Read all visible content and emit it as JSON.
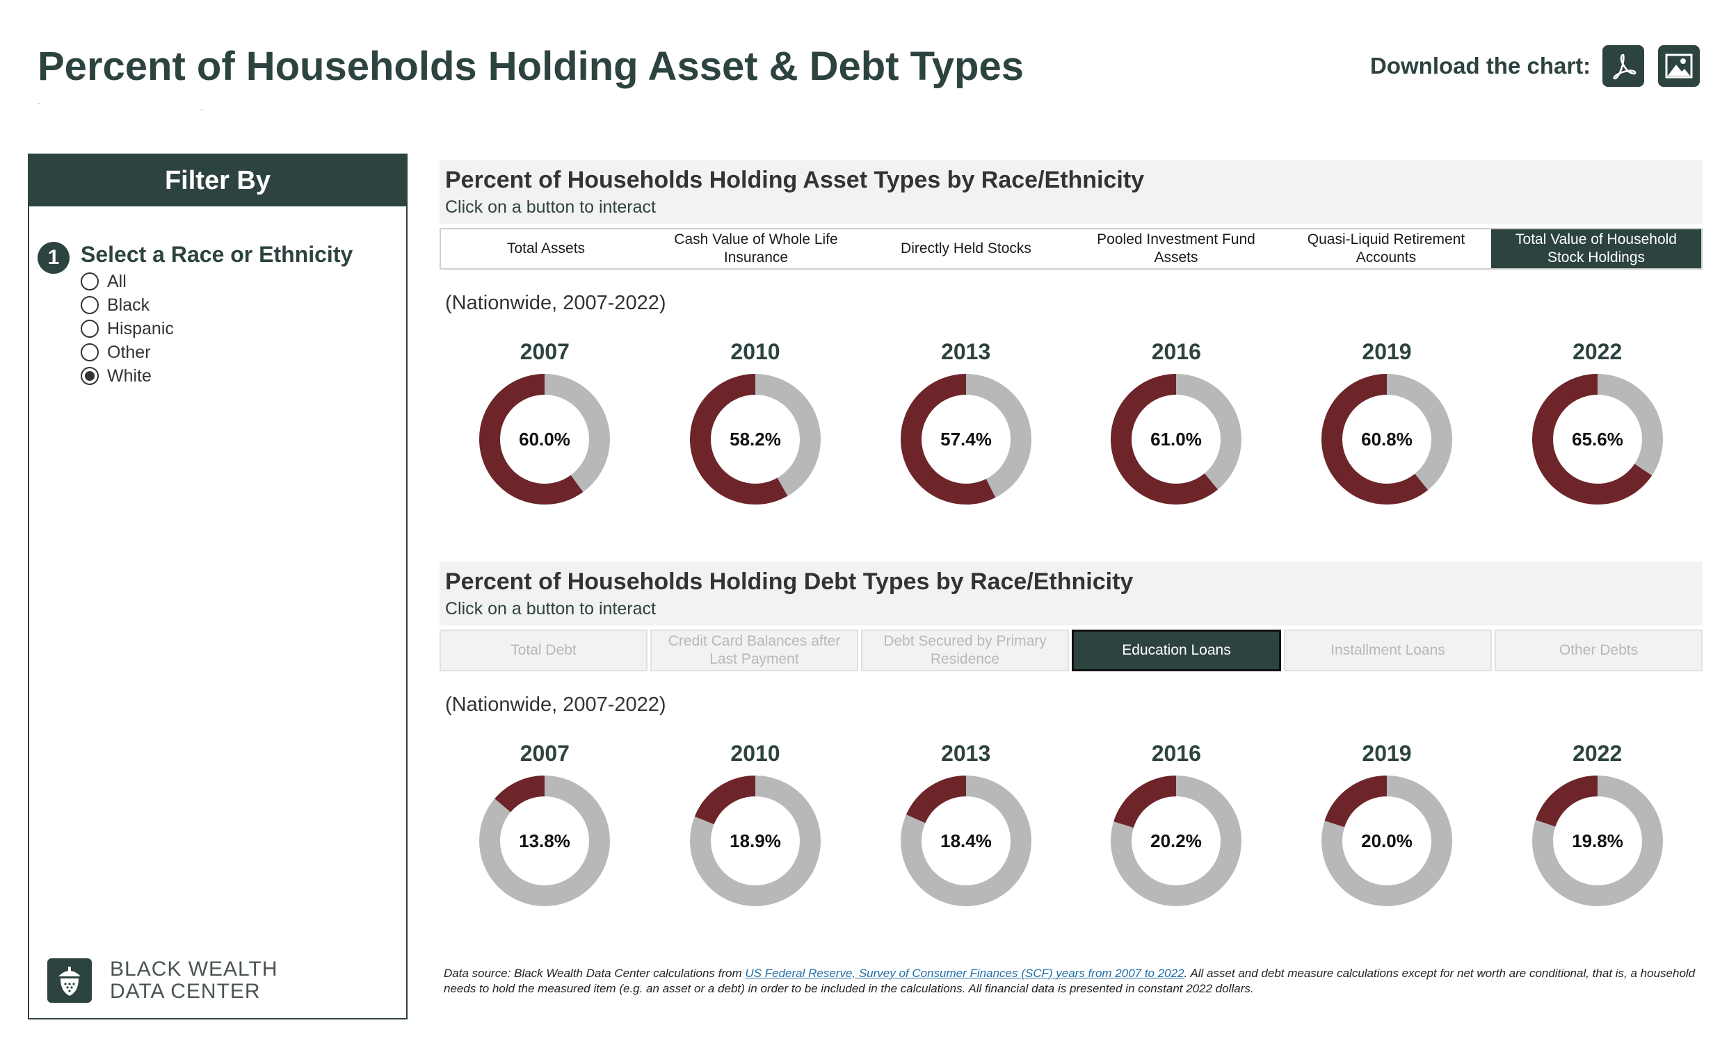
{
  "header": {
    "title": "Percent of Households Holding Asset & Debt Types",
    "download_label": "Download the chart:",
    "pdf_icon": "pdf-icon",
    "image_icon": "image-icon"
  },
  "sidebar": {
    "title": "Filter By",
    "step_number": "1",
    "step_title": "Select a Race or Ethnicity",
    "options": [
      {
        "label": "All",
        "selected": false
      },
      {
        "label": "Black",
        "selected": false
      },
      {
        "label": "Hispanic",
        "selected": false
      },
      {
        "label": "Other",
        "selected": false
      },
      {
        "label": "White",
        "selected": true
      }
    ],
    "logo_line1": "BLACK WEALTH",
    "logo_line2": "DATA CENTER"
  },
  "assets": {
    "title": "Percent of Households Holding Asset Types by Race/Ethnicity",
    "subtitle": "Click on a button to interact",
    "tabs": [
      {
        "label": "Total Assets",
        "active": false
      },
      {
        "label": "Cash Value of Whole Life Insurance",
        "active": false
      },
      {
        "label": "Directly Held Stocks",
        "active": false
      },
      {
        "label": "Pooled Investment Fund Assets",
        "active": false
      },
      {
        "label": "Quasi-Liquid Retirement Accounts",
        "active": false
      },
      {
        "label": "Total Value of Household Stock Holdings",
        "active": true
      }
    ],
    "range": "(Nationwide, 2007-2022)"
  },
  "debts": {
    "title": "Percent of Households Holding Debt Types by Race/Ethnicity",
    "subtitle": "Click on a button to interact",
    "tabs": [
      {
        "label": "Total Debt",
        "active": false
      },
      {
        "label": "Credit Card Balances after Last Payment",
        "active": false
      },
      {
        "label": "Debt Secured by Primary Residence",
        "active": false
      },
      {
        "label": "Education Loans",
        "active": true
      },
      {
        "label": "Installment Loans",
        "active": false
      },
      {
        "label": "Other Debts",
        "active": false
      }
    ],
    "range": "(Nationwide, 2007-2022)"
  },
  "chart_data": [
    {
      "type": "pie",
      "categories": [
        "2007",
        "2010",
        "2013",
        "2016",
        "2019",
        "2022"
      ],
      "values": [
        60.0,
        58.2,
        57.4,
        61.0,
        60.8,
        65.6
      ],
      "labels": [
        "60.0%",
        "58.2%",
        "57.4%",
        "61.0%",
        "60.8%",
        "65.6%"
      ],
      "colors": {
        "value": "#6e2529",
        "remainder": "#b8b8b8"
      }
    },
    {
      "type": "pie",
      "categories": [
        "2007",
        "2010",
        "2013",
        "2016",
        "2019",
        "2022"
      ],
      "values": [
        13.8,
        18.9,
        18.4,
        20.2,
        20.0,
        19.8
      ],
      "labels": [
        "13.8%",
        "18.9%",
        "18.4%",
        "20.2%",
        "20.0%",
        "19.8%"
      ],
      "colors": {
        "value": "#6e2529",
        "remainder": "#b8b8b8"
      }
    }
  ],
  "footnote": {
    "prefix": "Data source: Black Wealth Data Center calculations from ",
    "link": "US Federal Reserve, Survey of Consumer Finances (SCF) years from 2007 to 2022",
    "suffix": ". All asset and debt measure calculations except for net worth are conditional, that is, a household needs to hold the measured item (e.g. an asset or a debt) in order to be included in the calculations. All financial data is presented in constant 2022 dollars."
  }
}
